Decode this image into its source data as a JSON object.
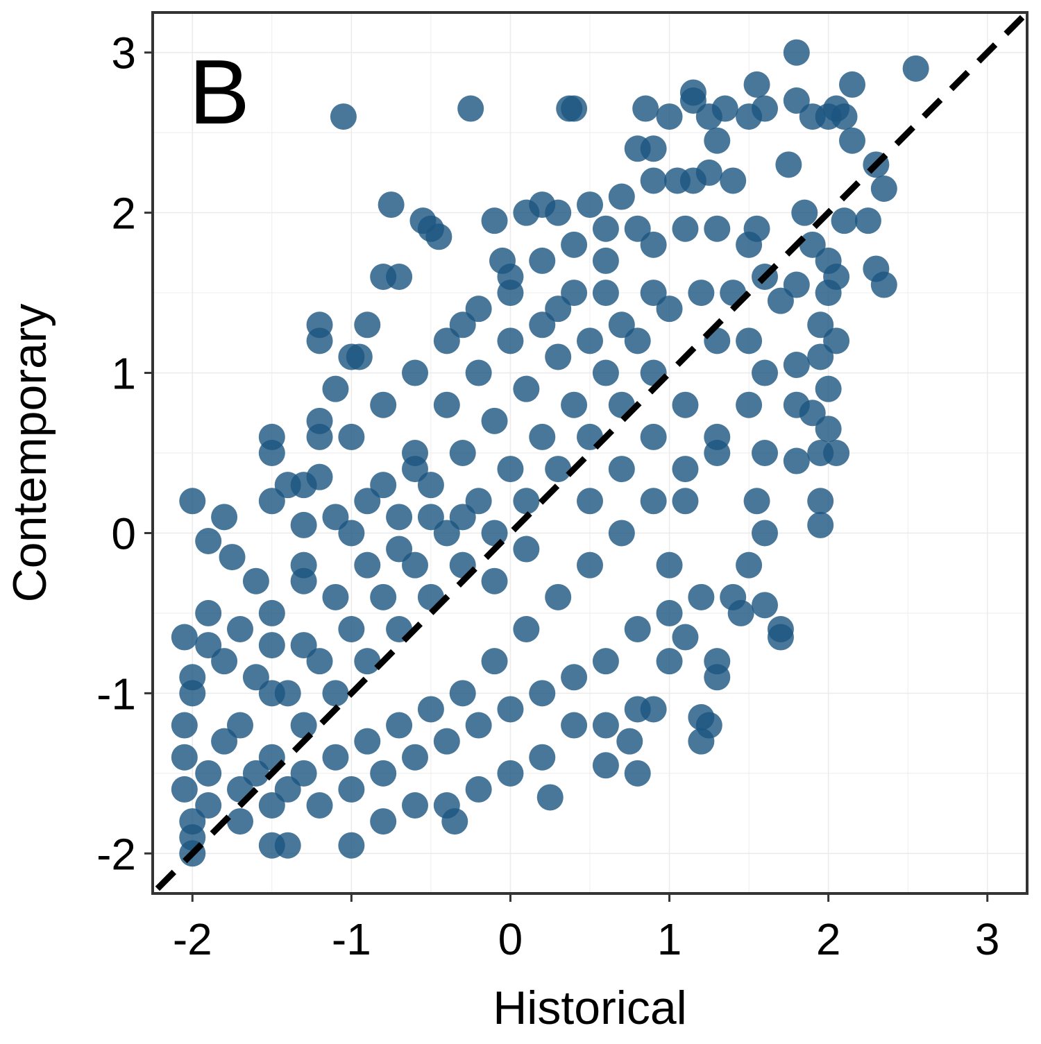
{
  "chart_data": {
    "type": "scatter",
    "panel_label": "B",
    "title": "",
    "xlabel": "Historical",
    "ylabel": "Contemporary",
    "xlim": [
      -2.25,
      3.25
    ],
    "ylim": [
      -2.25,
      3.25
    ],
    "x_ticks": [
      -2,
      -1,
      0,
      1,
      2,
      3
    ],
    "y_ticks": [
      -2,
      -1,
      0,
      1,
      2,
      3
    ],
    "x_tick_labels": [
      "-2",
      "-1",
      "0",
      "1",
      "2",
      "3"
    ],
    "y_tick_labels": [
      "-2",
      "-1",
      "0",
      "1",
      "2",
      "3"
    ],
    "grid": true,
    "reference_line": "y = x, dashed",
    "colors": {
      "points": "#1b5580",
      "reference_line": "#000000",
      "frame": "#333333",
      "grid": "#ebebeb"
    },
    "series": [
      {
        "points": [
          [
            -2.0,
            0.2
          ],
          [
            -1.8,
            0.1
          ],
          [
            -1.9,
            -0.05
          ],
          [
            -1.75,
            -0.15
          ],
          [
            -1.6,
            -0.3
          ],
          [
            -1.5,
            0.5
          ],
          [
            -1.5,
            0.6
          ],
          [
            -1.4,
            0.3
          ],
          [
            -1.3,
            0.3
          ],
          [
            -1.2,
            0.6
          ],
          [
            -1.2,
            0.7
          ],
          [
            -1.2,
            1.2
          ],
          [
            -1.2,
            1.3
          ],
          [
            -1.1,
            0.9
          ],
          [
            -1.0,
            1.1
          ],
          [
            -0.95,
            1.1
          ],
          [
            -0.9,
            1.3
          ],
          [
            -0.8,
            1.6
          ],
          [
            -0.75,
            2.05
          ],
          [
            -0.7,
            1.6
          ],
          [
            -0.55,
            1.95
          ],
          [
            -0.5,
            1.9
          ],
          [
            -0.45,
            1.85
          ],
          [
            -0.6,
            0.4
          ],
          [
            -0.3,
            1.3
          ],
          [
            -0.1,
            1.95
          ],
          [
            0.1,
            2.0
          ],
          [
            -0.05,
            1.7
          ],
          [
            0.0,
            1.6
          ],
          [
            0.2,
            2.05
          ],
          [
            0.3,
            2.0
          ],
          [
            0.5,
            2.05
          ],
          [
            0.7,
            2.1
          ],
          [
            0.8,
            1.9
          ],
          [
            0.6,
            1.5
          ],
          [
            0.3,
            1.4
          ],
          [
            -1.05,
            2.6
          ],
          [
            -0.25,
            2.65
          ],
          [
            0.37,
            2.65
          ],
          [
            0.4,
            2.65
          ],
          [
            0.85,
            2.65
          ],
          [
            1.0,
            2.6
          ],
          [
            1.15,
            2.7
          ],
          [
            1.15,
            2.75
          ],
          [
            1.25,
            2.6
          ],
          [
            1.35,
            2.65
          ],
          [
            1.5,
            2.6
          ],
          [
            1.55,
            2.8
          ],
          [
            1.6,
            2.65
          ],
          [
            1.75,
            2.3
          ],
          [
            1.8,
            3.0
          ],
          [
            1.8,
            2.7
          ],
          [
            1.9,
            2.6
          ],
          [
            2.0,
            2.6
          ],
          [
            2.05,
            2.65
          ],
          [
            2.1,
            2.6
          ],
          [
            2.15,
            2.8
          ],
          [
            2.15,
            2.45
          ],
          [
            2.3,
            2.3
          ],
          [
            2.35,
            2.15
          ],
          [
            2.55,
            2.9
          ],
          [
            0.8,
            2.4
          ],
          [
            0.9,
            2.4
          ],
          [
            0.9,
            2.2
          ],
          [
            1.05,
            2.2
          ],
          [
            1.15,
            2.2
          ],
          [
            1.25,
            2.25
          ],
          [
            1.3,
            2.45
          ],
          [
            1.4,
            2.2
          ],
          [
            1.85,
            2.0
          ],
          [
            1.9,
            1.8
          ],
          [
            2.0,
            1.7
          ],
          [
            2.05,
            1.6
          ],
          [
            2.0,
            1.5
          ],
          [
            1.8,
            1.55
          ],
          [
            1.7,
            1.45
          ],
          [
            2.1,
            1.95
          ],
          [
            2.25,
            1.95
          ],
          [
            2.3,
            1.65
          ],
          [
            2.35,
            1.55
          ],
          [
            1.95,
            1.3
          ],
          [
            1.8,
            1.05
          ],
          [
            1.95,
            1.1
          ],
          [
            2.05,
            1.2
          ],
          [
            2.0,
            0.9
          ],
          [
            1.8,
            0.8
          ],
          [
            1.9,
            0.75
          ],
          [
            2.0,
            0.65
          ],
          [
            1.95,
            0.5
          ],
          [
            1.8,
            0.45
          ],
          [
            2.05,
            0.5
          ],
          [
            1.95,
            0.2
          ],
          [
            1.95,
            0.05
          ],
          [
            1.7,
            -0.6
          ],
          [
            1.7,
            -0.65
          ],
          [
            1.3,
            -0.8
          ],
          [
            1.3,
            -0.9
          ],
          [
            1.1,
            -0.65
          ],
          [
            1.2,
            -1.15
          ],
          [
            1.2,
            -1.3
          ],
          [
            1.25,
            -1.2
          ],
          [
            0.9,
            -1.1
          ],
          [
            0.8,
            -1.1
          ],
          [
            0.75,
            -1.3
          ],
          [
            0.6,
            -1.2
          ],
          [
            0.6,
            -1.45
          ],
          [
            0.8,
            -1.5
          ],
          [
            0.25,
            -1.65
          ],
          [
            -0.35,
            -1.8
          ],
          [
            -1.0,
            -1.95
          ],
          [
            -1.4,
            -1.95
          ],
          [
            -1.5,
            -1.95
          ],
          [
            -2.0,
            -2.0
          ],
          [
            -2.0,
            -1.9
          ],
          [
            -2.0,
            -1.8
          ],
          [
            -2.05,
            -1.6
          ],
          [
            -2.05,
            -1.4
          ],
          [
            -2.05,
            -1.2
          ],
          [
            -2.0,
            -1.0
          ],
          [
            -2.0,
            -0.9
          ],
          [
            -2.05,
            -0.65
          ],
          [
            -1.9,
            -0.5
          ],
          [
            -1.9,
            -0.7
          ],
          [
            -1.8,
            -0.8
          ],
          [
            -1.5,
            0.2
          ],
          [
            -1.3,
            0.05
          ],
          [
            -1.2,
            0.35
          ],
          [
            -1.5,
            -0.5
          ],
          [
            -1.3,
            -0.2
          ],
          [
            -1.0,
            0.0
          ],
          [
            -0.8,
            0.3
          ],
          [
            -0.6,
            0.5
          ],
          [
            -0.4,
            0.8
          ],
          [
            -0.2,
            1.0
          ],
          [
            0.0,
            1.2
          ],
          [
            0.2,
            1.3
          ],
          [
            0.4,
            1.5
          ],
          [
            0.6,
            1.7
          ],
          [
            0.9,
            1.8
          ],
          [
            1.1,
            1.9
          ],
          [
            1.3,
            1.9
          ],
          [
            1.5,
            1.8
          ],
          [
            1.55,
            1.9
          ],
          [
            1.6,
            1.6
          ],
          [
            1.4,
            1.5
          ],
          [
            1.2,
            1.5
          ],
          [
            1.0,
            1.4
          ],
          [
            1.5,
            1.2
          ],
          [
            1.6,
            1.0
          ],
          [
            1.5,
            0.8
          ],
          [
            1.6,
            0.5
          ],
          [
            1.55,
            0.2
          ],
          [
            1.6,
            0.0
          ],
          [
            1.5,
            -0.2
          ],
          [
            1.4,
            -0.4
          ],
          [
            1.6,
            -0.45
          ],
          [
            1.45,
            -0.5
          ],
          [
            1.2,
            -0.4
          ],
          [
            1.0,
            -0.5
          ],
          [
            1.0,
            -0.2
          ],
          [
            1.1,
            0.2
          ],
          [
            1.3,
            0.5
          ],
          [
            1.1,
            0.8
          ],
          [
            0.9,
            1.0
          ],
          [
            0.7,
            0.8
          ],
          [
            0.5,
            0.6
          ],
          [
            0.3,
            0.4
          ],
          [
            0.1,
            0.2
          ],
          [
            -0.1,
            0.0
          ],
          [
            -0.3,
            -0.2
          ],
          [
            -0.5,
            -0.4
          ],
          [
            -0.7,
            -0.6
          ],
          [
            -0.9,
            -0.8
          ],
          [
            -1.1,
            -1.0
          ],
          [
            -1.3,
            -1.2
          ],
          [
            -1.5,
            -1.4
          ],
          [
            -1.7,
            -1.6
          ],
          [
            -1.9,
            -1.7
          ],
          [
            -1.7,
            -1.2
          ],
          [
            -1.5,
            -1.0
          ],
          [
            -1.3,
            -0.7
          ],
          [
            -1.1,
            -0.4
          ],
          [
            -0.9,
            -0.2
          ],
          [
            -0.7,
            0.1
          ],
          [
            -0.5,
            0.3
          ],
          [
            -0.3,
            0.5
          ],
          [
            -0.1,
            0.7
          ],
          [
            0.1,
            0.9
          ],
          [
            0.3,
            1.1
          ],
          [
            0.5,
            1.2
          ],
          [
            0.7,
            1.3
          ],
          [
            0.9,
            1.5
          ],
          [
            0.2,
            0.6
          ],
          [
            0.4,
            0.8
          ],
          [
            0.6,
            1.0
          ],
          [
            0.8,
            1.2
          ],
          [
            0.0,
            0.4
          ],
          [
            -0.2,
            0.2
          ],
          [
            -0.4,
            0.0
          ],
          [
            -0.6,
            -0.2
          ],
          [
            -0.8,
            -0.4
          ],
          [
            -1.0,
            -0.6
          ],
          [
            -1.2,
            -0.8
          ],
          [
            -1.4,
            -1.0
          ],
          [
            -1.6,
            -0.9
          ],
          [
            -1.8,
            -1.3
          ],
          [
            -1.6,
            -1.5
          ],
          [
            -1.4,
            -1.6
          ],
          [
            -1.2,
            -1.7
          ],
          [
            -1.0,
            -1.6
          ],
          [
            -0.8,
            -1.5
          ],
          [
            -0.6,
            -1.4
          ],
          [
            -0.4,
            -1.3
          ],
          [
            -0.2,
            -1.2
          ],
          [
            0.0,
            -1.1
          ],
          [
            0.2,
            -1.0
          ],
          [
            0.4,
            -0.9
          ],
          [
            0.6,
            -0.8
          ],
          [
            0.8,
            -0.6
          ],
          [
            1.0,
            -0.8
          ],
          [
            0.4,
            -1.2
          ],
          [
            0.2,
            -1.4
          ],
          [
            0.0,
            -1.5
          ],
          [
            -0.2,
            -1.6
          ],
          [
            -0.4,
            -1.7
          ],
          [
            -0.6,
            -1.7
          ],
          [
            -0.8,
            -1.8
          ],
          [
            0.3,
            -0.4
          ],
          [
            0.5,
            -0.2
          ],
          [
            0.7,
            0.0
          ],
          [
            0.9,
            0.2
          ],
          [
            1.1,
            0.4
          ],
          [
            1.3,
            0.6
          ],
          [
            1.3,
            1.2
          ],
          [
            0.1,
            -0.6
          ],
          [
            -0.1,
            -0.8
          ],
          [
            -0.3,
            -1.0
          ],
          [
            -0.5,
            -1.1
          ],
          [
            -0.7,
            -1.2
          ],
          [
            -0.9,
            -1.3
          ],
          [
            -1.1,
            -1.4
          ],
          [
            -1.3,
            -1.5
          ],
          [
            -1.5,
            -1.7
          ],
          [
            -1.7,
            -1.8
          ],
          [
            -1.9,
            -1.5
          ],
          [
            0.5,
            0.2
          ],
          [
            0.7,
            0.4
          ],
          [
            0.9,
            0.6
          ],
          [
            -0.1,
            -0.3
          ],
          [
            0.1,
            -0.1
          ],
          [
            -0.3,
            0.1
          ],
          [
            -0.5,
            0.1
          ],
          [
            -0.7,
            -0.1
          ],
          [
            -0.9,
            0.2
          ],
          [
            -1.1,
            0.1
          ],
          [
            -1.3,
            -0.3
          ],
          [
            -1.5,
            -0.7
          ],
          [
            -1.7,
            -0.6
          ],
          [
            -0.4,
            1.2
          ],
          [
            -0.6,
            1.0
          ],
          [
            -0.8,
            0.8
          ],
          [
            -1.0,
            0.6
          ],
          [
            -0.2,
            1.4
          ],
          [
            0.0,
            1.5
          ],
          [
            0.2,
            1.7
          ],
          [
            0.4,
            1.8
          ],
          [
            0.6,
            1.9
          ]
        ]
      }
    ]
  }
}
